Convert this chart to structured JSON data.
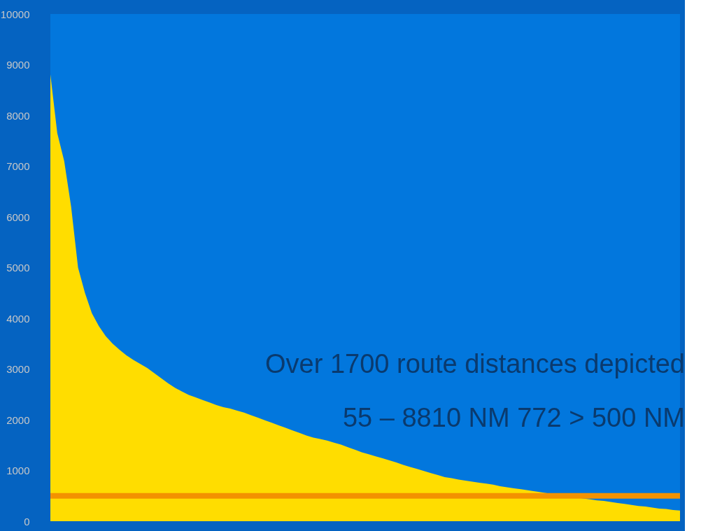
{
  "chart_data": {
    "type": "area",
    "categories": [
      null,
      null,
      null,
      null,
      null,
      null,
      null,
      null,
      null,
      null,
      null,
      null,
      null,
      null,
      null,
      null,
      null,
      null,
      null,
      null,
      null,
      null,
      null,
      null,
      null,
      null,
      null,
      null,
      null,
      null,
      null,
      null,
      null,
      null,
      null,
      null,
      null,
      null,
      null,
      null,
      null,
      null,
      null,
      null,
      null,
      null,
      null,
      null,
      null,
      null,
      null,
      null,
      null,
      null,
      null,
      null,
      null,
      null,
      null,
      null,
      null,
      null,
      null,
      null,
      null,
      null,
      null,
      null,
      null,
      null,
      null,
      null,
      null,
      null,
      null,
      null,
      null,
      null,
      null,
      null,
      null,
      null,
      null,
      null,
      null,
      null,
      null,
      null,
      null,
      null,
      null,
      null
    ],
    "series": [
      {
        "color": "#ffdd00",
        "values": [
          8810,
          7650,
          7100,
          6200,
          5000,
          4500,
          4100,
          3850,
          3650,
          3500,
          3380,
          3270,
          3180,
          3100,
          3020,
          2920,
          2820,
          2720,
          2630,
          2560,
          2490,
          2440,
          2390,
          2340,
          2290,
          2250,
          2220,
          2180,
          2140,
          2090,
          2040,
          1990,
          1940,
          1890,
          1840,
          1790,
          1740,
          1690,
          1650,
          1620,
          1590,
          1550,
          1510,
          1460,
          1410,
          1360,
          1320,
          1280,
          1240,
          1200,
          1160,
          1110,
          1070,
          1030,
          990,
          950,
          910,
          870,
          850,
          820,
          800,
          780,
          760,
          740,
          720,
          690,
          670,
          650,
          630,
          610,
          590,
          570,
          550,
          520,
          500,
          480,
          470,
          450,
          430,
          410,
          400,
          380,
          360,
          340,
          320,
          300,
          290,
          270,
          250,
          240,
          220,
          210
        ]
      }
    ],
    "ylim": [
      0,
      10000
    ],
    "yticks": [
      0,
      1000,
      2000,
      3000,
      4000,
      5000,
      6000,
      7000,
      8000,
      9000,
      10000
    ],
    "ref_lines": [
      {
        "axis": "y",
        "value": 500,
        "color": "#f39200"
      }
    ],
    "annotations": [
      "Over 1700 route distances depicted",
      "55 – 8810 NM   772 > 500 NM"
    ],
    "grid": false
  }
}
